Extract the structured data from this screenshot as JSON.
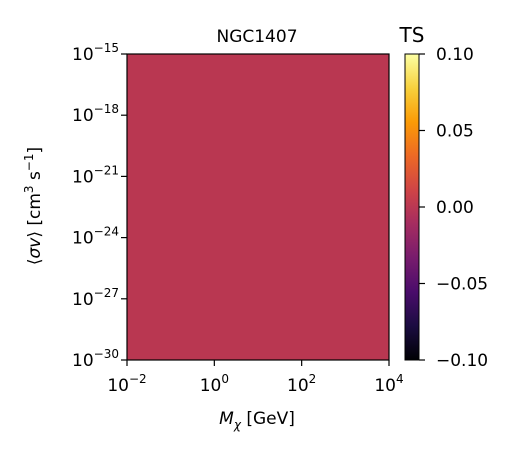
{
  "chart_data": {
    "type": "heatmap",
    "title": "NGC1407",
    "xlabel": {
      "main": "M",
      "sub": "χ",
      "unit": " [GeV]"
    },
    "ylabel": {
      "open": "⟨",
      "var": "σv",
      "close": "⟩ [cm",
      "sup1": "3",
      "mid": " s",
      "sup2": "−1",
      "end": "]"
    },
    "x_scale": "log",
    "y_scale": "log",
    "xlim": [
      0.01,
      10000
    ],
    "ylim": [
      1e-30,
      1e-15
    ],
    "x_ticks": [
      {
        "value": 0.01,
        "base": "10",
        "exp": "−2"
      },
      {
        "value": 1,
        "base": "10",
        "exp": "0"
      },
      {
        "value": 100,
        "base": "10",
        "exp": "2"
      },
      {
        "value": 10000,
        "base": "10",
        "exp": "4"
      }
    ],
    "y_ticks": [
      {
        "value": 1e-30,
        "base": "10",
        "exp": "−30"
      },
      {
        "value": 1e-27,
        "base": "10",
        "exp": "−27"
      },
      {
        "value": 1e-24,
        "base": "10",
        "exp": "−24"
      },
      {
        "value": 1e-21,
        "base": "10",
        "exp": "−21"
      },
      {
        "value": 1e-18,
        "base": "10",
        "exp": "−18"
      },
      {
        "value": 1e-15,
        "base": "10",
        "exp": "−15"
      }
    ],
    "ts_value": 0.0,
    "fill_color": "#b93751",
    "grid": false,
    "colorbar": {
      "title": "TS",
      "colormap": "inferno",
      "range": [
        -0.1,
        0.1
      ],
      "ticks": [
        {
          "value": 0.1,
          "label": "0.10"
        },
        {
          "value": 0.05,
          "label": "0.05"
        },
        {
          "value": 0.0,
          "label": "0.00"
        },
        {
          "value": -0.05,
          "label": "−0.05"
        },
        {
          "value": -0.1,
          "label": "−0.10"
        }
      ],
      "stops": [
        "#000004",
        "#1b0c41",
        "#4a0c6b",
        "#781c6d",
        "#a52c60",
        "#cf4446",
        "#ed6925",
        "#fb9b06",
        "#f7d13d",
        "#fcffa4"
      ]
    }
  }
}
